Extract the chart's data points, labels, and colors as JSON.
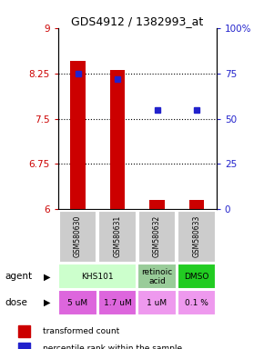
{
  "title": "GDS4912 / 1382993_at",
  "samples": [
    "GSM580630",
    "GSM580631",
    "GSM580632",
    "GSM580633"
  ],
  "bar_values": [
    8.45,
    8.3,
    6.15,
    6.15
  ],
  "percentile_values": [
    75,
    72,
    55,
    55
  ],
  "ylim_left": [
    6,
    9
  ],
  "ylim_right": [
    0,
    100
  ],
  "yticks_left": [
    6,
    6.75,
    7.5,
    8.25,
    9
  ],
  "yticks_right": [
    0,
    25,
    50,
    75,
    100
  ],
  "ytick_labels_right": [
    "0",
    "25",
    "50",
    "75",
    "100%"
  ],
  "bar_color": "#cc0000",
  "dot_color": "#2222cc",
  "grid_lines": [
    6.75,
    7.5,
    8.25
  ],
  "sample_box_color": "#cccccc",
  "agent_specs": [
    [
      0,
      2,
      "KHS101",
      "#ccffcc"
    ],
    [
      2,
      3,
      "retinoic\nacid",
      "#99cc99"
    ],
    [
      3,
      4,
      "DMSO",
      "#22cc22"
    ]
  ],
  "dose_labels": [
    "5 uM",
    "1.7 uM",
    "1 uM",
    "0.1 %"
  ],
  "dose_colors": [
    "#dd66dd",
    "#dd66dd",
    "#ee99ee",
    "#ee99ee"
  ],
  "legend_bar_label": "transformed count",
  "legend_dot_label": "percentile rank within the sample"
}
